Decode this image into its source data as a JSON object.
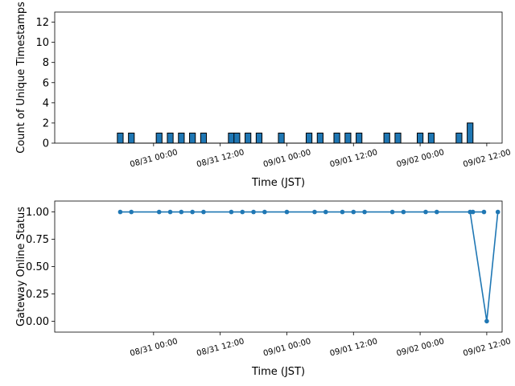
{
  "chart_data": [
    {
      "type": "bar",
      "xlabel": "Time (JST)",
      "ylabel": "Count of Unique Timestamps",
      "ylim": [
        0,
        13
      ],
      "yticks": [
        0,
        2,
        4,
        6,
        8,
        10,
        12
      ],
      "xlim": [
        "08/30 06:12",
        "09/02 14:46"
      ],
      "xticks": [
        {
          "t": "08/31 00:00",
          "label": "08/31 00:00"
        },
        {
          "t": "08/31 12:00",
          "label": "08/31 12:00"
        },
        {
          "t": "09/01 00:00",
          "label": "09/01 00:00"
        },
        {
          "t": "09/01 12:00",
          "label": "09/01 12:00"
        },
        {
          "t": "09/02 00:00",
          "label": "09/02 00:00"
        },
        {
          "t": "09/02 12:00",
          "label": "09/02 12:00"
        }
      ],
      "bar_color": "#1f77b4",
      "bars": [
        {
          "t": "08/30 18:00",
          "value": 1
        },
        {
          "t": "08/30 20:00",
          "value": 1
        },
        {
          "t": "08/31 01:00",
          "value": 1
        },
        {
          "t": "08/31 03:00",
          "value": 1
        },
        {
          "t": "08/31 05:00",
          "value": 1
        },
        {
          "t": "08/31 07:00",
          "value": 1
        },
        {
          "t": "08/31 09:00",
          "value": 1
        },
        {
          "t": "08/31 14:00",
          "value": 1
        },
        {
          "t": "08/31 15:00",
          "value": 1
        },
        {
          "t": "08/31 17:00",
          "value": 1
        },
        {
          "t": "08/31 19:00",
          "value": 1
        },
        {
          "t": "08/31 23:00",
          "value": 1
        },
        {
          "t": "09/01 04:00",
          "value": 1
        },
        {
          "t": "09/01 06:00",
          "value": 1
        },
        {
          "t": "09/01 09:00",
          "value": 1
        },
        {
          "t": "09/01 11:00",
          "value": 1
        },
        {
          "t": "09/01 13:00",
          "value": 1
        },
        {
          "t": "09/01 18:00",
          "value": 1
        },
        {
          "t": "09/01 20:00",
          "value": 1
        },
        {
          "t": "09/02 00:00",
          "value": 1
        },
        {
          "t": "09/02 02:00",
          "value": 1
        },
        {
          "t": "09/02 07:00",
          "value": 1
        },
        {
          "t": "09/02 09:00",
          "value": 2
        },
        {
          "t": "09/02 12:00",
          "value": 0
        }
      ]
    },
    {
      "type": "line",
      "xlabel": "Time (JST)",
      "ylabel": "Gateway Online Status",
      "ylim": [
        -0.1,
        1.1
      ],
      "yticks": [
        0.0,
        0.25,
        0.5,
        0.75,
        1.0
      ],
      "ytick_labels": [
        "0.00",
        "0.25",
        "0.50",
        "0.75",
        "1.00"
      ],
      "xlim": [
        "08/30 06:12",
        "09/02 14:46"
      ],
      "xticks": [
        {
          "t": "08/31 00:00",
          "label": "08/31 00:00"
        },
        {
          "t": "08/31 12:00",
          "label": "08/31 12:00"
        },
        {
          "t": "09/01 00:00",
          "label": "09/01 00:00"
        },
        {
          "t": "09/01 12:00",
          "label": "09/01 12:00"
        },
        {
          "t": "09/02 00:00",
          "label": "09/02 00:00"
        },
        {
          "t": "09/02 12:00",
          "label": "09/02 12:00"
        }
      ],
      "line_color": "#1f77b4",
      "points": [
        {
          "t": "08/30 18:00",
          "y": 1
        },
        {
          "t": "08/30 20:00",
          "y": 1
        },
        {
          "t": "08/31 01:00",
          "y": 1
        },
        {
          "t": "08/31 03:00",
          "y": 1
        },
        {
          "t": "08/31 05:00",
          "y": 1
        },
        {
          "t": "08/31 07:00",
          "y": 1
        },
        {
          "t": "08/31 09:00",
          "y": 1
        },
        {
          "t": "08/31 14:00",
          "y": 1
        },
        {
          "t": "08/31 16:00",
          "y": 1
        },
        {
          "t": "08/31 18:00",
          "y": 1
        },
        {
          "t": "08/31 20:00",
          "y": 1
        },
        {
          "t": "09/01 00:00",
          "y": 1
        },
        {
          "t": "09/01 05:00",
          "y": 1
        },
        {
          "t": "09/01 07:00",
          "y": 1
        },
        {
          "t": "09/01 10:00",
          "y": 1
        },
        {
          "t": "09/01 12:00",
          "y": 1
        },
        {
          "t": "09/01 14:00",
          "y": 1
        },
        {
          "t": "09/01 19:00",
          "y": 1
        },
        {
          "t": "09/01 21:00",
          "y": 1
        },
        {
          "t": "09/02 01:00",
          "y": 1
        },
        {
          "t": "09/02 03:00",
          "y": 1
        },
        {
          "t": "09/02 09:30",
          "y": 1
        },
        {
          "t": "09/02 11:30",
          "y": 1
        },
        {
          "t": "09/02 09:00",
          "y": 1
        },
        {
          "t": "09/02 12:00",
          "y": 0
        },
        {
          "t": "09/02 14:00",
          "y": 1
        }
      ]
    }
  ]
}
